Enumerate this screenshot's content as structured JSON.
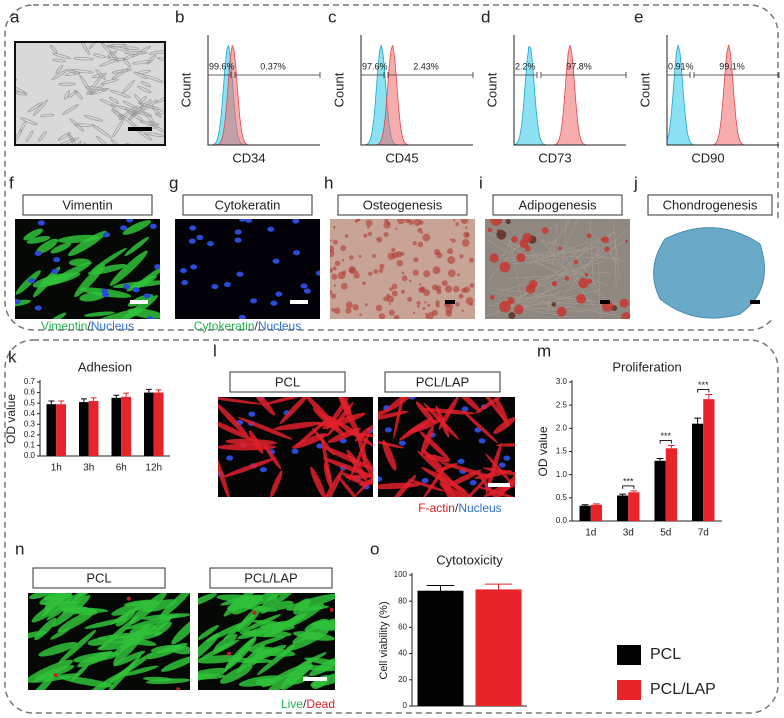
{
  "panels_top": {
    "a": {
      "letter": "a"
    },
    "flow": [
      {
        "letter": "b",
        "ylabel": "Count",
        "xlabel": "CD34",
        "gates": [
          "99.6%",
          "0.37%"
        ]
      },
      {
        "letter": "c",
        "ylabel": "Count",
        "xlabel": "CD45",
        "gates": [
          "97.6%",
          "2.43%"
        ]
      },
      {
        "letter": "d",
        "ylabel": "Count",
        "xlabel": "CD73",
        "gates": [
          "2.2%",
          "97.8%"
        ]
      },
      {
        "letter": "e",
        "ylabel": "Count",
        "xlabel": "CD90",
        "gates": [
          "0.91%",
          "99.1%"
        ]
      }
    ],
    "images": [
      {
        "letter": "f",
        "title": "Vimentin",
        "caption": [
          "Vimentin",
          "/",
          "Nucleus"
        ]
      },
      {
        "letter": "g",
        "title": "Cytokeratin",
        "caption": [
          "Cytokeratin",
          "/",
          "Nucleus"
        ]
      },
      {
        "letter": "h",
        "title": "Osteogenesis"
      },
      {
        "letter": "i",
        "title": "Adipogenesis"
      },
      {
        "letter": "j",
        "title": "Chondrogenesis"
      }
    ],
    "caption_colors": [
      "#22b14c",
      "#333333",
      "#2f6fd0"
    ]
  },
  "panels_bottom": {
    "l": {
      "letter": "l",
      "titles": [
        "PCL",
        "PCL/LAP"
      ],
      "caption": [
        "F-actin",
        "/",
        "Nucleus"
      ],
      "caption_colors": [
        "#e02020",
        "#333333",
        "#2f6fd0"
      ]
    },
    "n": {
      "letter": "n",
      "titles": [
        "PCL",
        "PCL/LAP"
      ],
      "caption": [
        "Live",
        "/",
        "Dead"
      ],
      "caption_colors": [
        "#22b14c",
        "#333333",
        "#e02020"
      ]
    }
  },
  "legend": [
    {
      "name": "PCL",
      "color": "#000000"
    },
    {
      "name": "PCL/LAP",
      "color": "#e8242a"
    }
  ],
  "chart_data": [
    {
      "type": "bar",
      "panel": "k",
      "title": "Adhesion",
      "ylabel": "OD value",
      "categories": [
        "1h",
        "3h",
        "6h",
        "12h"
      ],
      "series": [
        {
          "name": "PCL",
          "color": "#000000",
          "values": [
            0.49,
            0.51,
            0.55,
            0.6
          ],
          "errors": [
            0.03,
            0.03,
            0.025,
            0.03
          ]
        },
        {
          "name": "PCL/LAP",
          "color": "#e8242a",
          "values": [
            0.49,
            0.52,
            0.56,
            0.6
          ],
          "errors": [
            0.03,
            0.03,
            0.035,
            0.025
          ]
        }
      ],
      "ylim": [
        0,
        0.7
      ],
      "yticks": [
        {
          "value": 0,
          "label": "0.0"
        },
        0.1,
        0.2,
        0.3,
        0.4,
        0.5,
        0.6,
        0.7
      ]
    },
    {
      "type": "bar",
      "panel": "m",
      "title": "Proliferation",
      "ylabel": "OD value",
      "categories": [
        "1d",
        "3d",
        "5d",
        "7d"
      ],
      "series": [
        {
          "name": "PCL",
          "color": "#000000",
          "values": [
            0.33,
            0.55,
            1.3,
            2.1
          ],
          "errors": [
            0.02,
            0.03,
            0.05,
            0.12
          ]
        },
        {
          "name": "PCL/LAP",
          "color": "#e8242a",
          "values": [
            0.35,
            0.62,
            1.57,
            2.63
          ],
          "errors": [
            0.02,
            0.03,
            0.06,
            0.1
          ]
        }
      ],
      "annotations": [
        {
          "text": "***",
          "category": 1
        },
        {
          "text": "***",
          "category": 2
        },
        {
          "text": "***",
          "category": 3
        }
      ],
      "ylim": [
        0,
        3.0
      ],
      "yticks": [
        {
          "value": 0,
          "label": "0.0"
        },
        0.5,
        {
          "value": 1,
          "label": "1.0"
        },
        1.5,
        {
          "value": 2,
          "label": "2.0"
        },
        2.5,
        {
          "value": 3,
          "label": "3.0"
        }
      ]
    },
    {
      "type": "bar",
      "panel": "o",
      "title": "Cytotoxicity",
      "ylabel": "Cell viability (%)",
      "categories": [
        null
      ],
      "series": [
        {
          "name": "PCL",
          "color": "#000000",
          "values": [
            88
          ],
          "errors": [
            4
          ]
        },
        {
          "name": "PCL/LAP",
          "color": "#e8242a",
          "values": [
            89
          ],
          "errors": [
            4
          ]
        }
      ],
      "ylim": [
        0,
        100
      ],
      "yticks": [
        0,
        20,
        40,
        60,
        80,
        100
      ]
    }
  ]
}
